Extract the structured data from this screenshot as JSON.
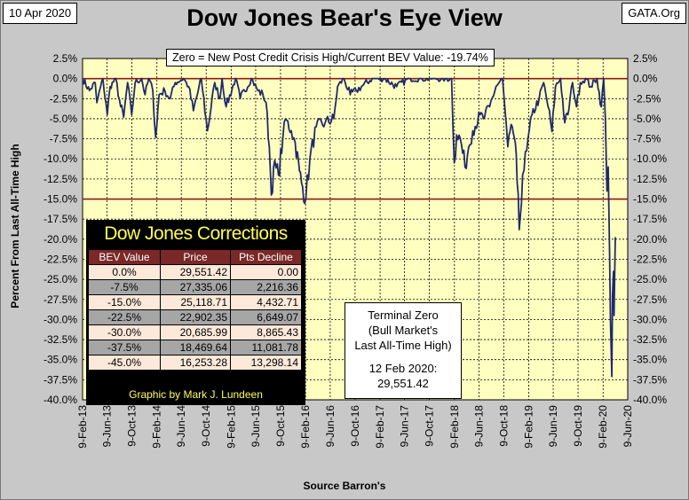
{
  "header": {
    "date": "10 Apr 2020",
    "site": "GATA.Org",
    "title": "Dow Jones Bear's Eye View"
  },
  "note": "Zero = New Post Credit Crisis High/Current BEV Value:  -19.74%",
  "terminal_box": {
    "lines": [
      "Terminal Zero",
      "(Bull Market's",
      "Last All-Time High)",
      "",
      "12 Feb 2020:",
      "29,551.42"
    ]
  },
  "corrections_table": {
    "title": "Dow Jones Corrections",
    "headers": [
      "BEV Value",
      "Price",
      "Pts Decline"
    ],
    "rows": [
      [
        "0.0%",
        "29,551.42",
        "0.00"
      ],
      [
        "-7.5%",
        "27,335.06",
        "2,216.36"
      ],
      [
        "-15.0%",
        "25,118.71",
        "4,432.71"
      ],
      [
        "-22.5%",
        "22,902.35",
        "6,649.07"
      ],
      [
        "-30.0%",
        "20,685.99",
        "8,865.43"
      ],
      [
        "-37.5%",
        "18,469.64",
        "11,081.78"
      ],
      [
        "-45.0%",
        "16,253.28",
        "13,298.14"
      ]
    ],
    "credit": "Graphic by Mark J. Lundeen"
  },
  "colors": {
    "plot_bg": "#ffffc0",
    "line": "#1f2a6b",
    "ref_line": "#8b1a1a",
    "frame_bg": "#c8c8c8"
  },
  "chart_data": {
    "type": "line",
    "title": "Dow Jones Bear's Eye View",
    "ylabel": "Percent From Last All-Time High",
    "xlabel": "Source Barron's",
    "ylim": [
      -40.0,
      2.5
    ],
    "y_ticks": [
      "2.5%",
      "0.0%",
      "-2.5%",
      "-5.0%",
      "-7.5%",
      "-10.0%",
      "-12.5%",
      "-15.0%",
      "-17.5%",
      "-20.0%",
      "-22.5%",
      "-25.0%",
      "-27.5%",
      "-30.0%",
      "-32.5%",
      "-35.0%",
      "-37.5%",
      "-40.0%"
    ],
    "x_ticks": [
      "9-Feb-13",
      "9-Jun-13",
      "9-Oct-13",
      "9-Feb-14",
      "9-Jun-14",
      "9-Oct-14",
      "9-Feb-15",
      "9-Jun-15",
      "9-Oct-15",
      "9-Feb-16",
      "9-Jun-16",
      "9-Oct-16",
      "9-Feb-17",
      "9-Jun-17",
      "9-Oct-17",
      "9-Feb-18",
      "9-Jun-18",
      "9-Oct-18",
      "9-Feb-19",
      "9-Jun-19",
      "9-Oct-19",
      "9-Feb-20",
      "9-Jun-20"
    ],
    "reference_lines": [
      0.0,
      -15.0
    ],
    "grid": true,
    "series": [
      {
        "x": [
          "2013-02-09",
          "2013-03-15",
          "2013-04-12",
          "2013-04-20",
          "2013-05-20",
          "2013-06-10",
          "2013-06-24",
          "2013-07-22",
          "2013-08-15",
          "2013-08-30",
          "2013-09-18",
          "2013-10-08",
          "2013-10-25",
          "2013-11-26",
          "2013-12-13",
          "2013-12-31",
          "2014-01-20",
          "2014-02-03",
          "2014-02-20",
          "2014-03-20",
          "2014-04-15",
          "2014-05-10",
          "2014-06-20",
          "2014-07-15",
          "2014-08-07",
          "2014-09-15",
          "2014-10-15",
          "2014-11-20",
          "2014-12-16",
          "2014-12-26",
          "2015-01-15",
          "2015-03-02",
          "2015-03-25",
          "2015-05-19",
          "2015-06-20",
          "2015-07-15",
          "2015-07-30",
          "2015-08-15",
          "2015-08-25",
          "2015-09-05",
          "2015-09-29",
          "2015-10-20",
          "2015-11-03",
          "2015-12-01",
          "2015-12-20",
          "2016-01-10",
          "2016-01-20",
          "2016-02-11",
          "2016-03-01",
          "2016-04-01",
          "2016-05-15",
          "2016-06-27",
          "2016-07-15",
          "2016-08-15",
          "2016-09-15",
          "2016-10-15",
          "2016-11-09",
          "2017-01-01",
          "2017-03-01",
          "2017-05-01",
          "2017-07-01",
          "2017-09-01",
          "2017-11-01",
          "2018-01-26",
          "2018-02-08",
          "2018-02-20",
          "2018-03-10",
          "2018-04-02",
          "2018-04-20",
          "2018-05-10",
          "2018-06-15",
          "2018-07-01",
          "2018-08-01",
          "2018-09-01",
          "2018-10-03",
          "2018-10-29",
          "2018-11-20",
          "2018-12-05",
          "2018-12-14",
          "2018-12-24",
          "2019-01-10",
          "2019-01-30",
          "2019-02-25",
          "2019-04-01",
          "2019-04-23",
          "2019-05-15",
          "2019-06-03",
          "2019-06-20",
          "2019-07-15",
          "2019-08-05",
          "2019-08-20",
          "2019-09-12",
          "2019-10-02",
          "2019-10-20",
          "2019-11-15",
          "2019-12-10",
          "2020-01-10",
          "2020-01-31",
          "2020-02-12",
          "2020-02-20",
          "2020-02-28",
          "2020-03-05",
          "2020-03-12",
          "2020-03-16",
          "2020-03-23",
          "2020-03-26",
          "2020-03-31",
          "2020-04-03",
          "2020-04-09"
        ],
        "y": [
          0.0,
          -1.5,
          -0.5,
          -3.0,
          0.0,
          -4.5,
          -1.0,
          0.0,
          -3.5,
          -4.8,
          -0.5,
          -4.5,
          -0.5,
          0.0,
          -2.0,
          0.0,
          -1.5,
          -7.3,
          -2.0,
          -1.5,
          -2.5,
          -0.5,
          0.0,
          -1.0,
          -4.0,
          0.0,
          -6.5,
          -0.5,
          -2.5,
          0.0,
          -3.5,
          0.0,
          -2.5,
          0.0,
          -1.5,
          -2.0,
          -3.0,
          -8.5,
          -14.5,
          -11.0,
          -12.0,
          -7.5,
          -5.0,
          -6.5,
          -8.0,
          -11.5,
          -13.0,
          -14.8,
          -10.0,
          -6.0,
          -5.5,
          -5.0,
          -1.0,
          0.0,
          -2.0,
          -1.5,
          -1.0,
          0.0,
          0.0,
          -1.0,
          0.0,
          0.0,
          0.0,
          0.0,
          -10.5,
          -7.0,
          -7.5,
          -11.0,
          -8.5,
          -6.5,
          -4.5,
          -5.0,
          -3.5,
          -1.0,
          0.0,
          -8.5,
          -6.0,
          -8.0,
          -13.0,
          -18.8,
          -12.0,
          -9.0,
          -4.5,
          -2.5,
          -0.5,
          -3.5,
          -6.6,
          -1.0,
          0.0,
          -5.5,
          -4.5,
          -0.5,
          -3.5,
          -0.5,
          0.0,
          -1.0,
          0.0,
          -3.5,
          0.0,
          -5.0,
          -14.0,
          -11.0,
          -22.0,
          -30.0,
          -37.1,
          -27.0,
          -24.0,
          -29.5,
          -19.74
        ]
      }
    ]
  }
}
